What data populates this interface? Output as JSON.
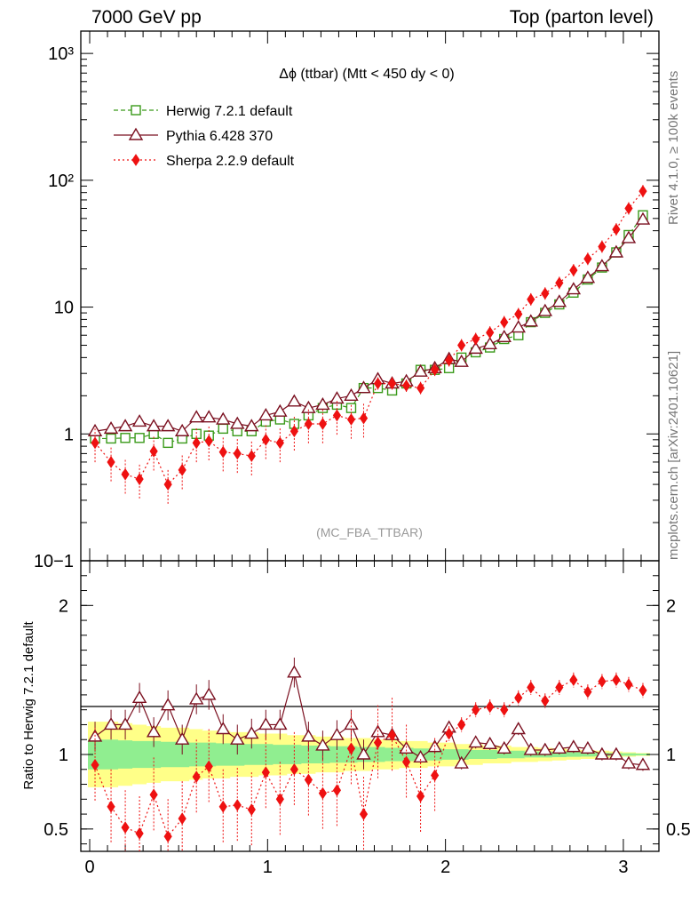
{
  "header": {
    "left": "7000 GeV pp",
    "right": "Top (parton level)"
  },
  "side_labels": {
    "rivet": "Rivet 4.1.0, ≥ 100k events",
    "mcplots": "mcplots.cern.ch [arXiv:2401.10621]"
  },
  "colors": {
    "herwig": "#3a9a1a",
    "pythia": "#7b1020",
    "sherpa": "#ee1111",
    "band_green": "#90ee90",
    "band_yellow": "#ffff88"
  },
  "chart_data": [
    {
      "type": "line",
      "title": "Δϕ (ttbar) (Mtt < 450 dy < 0)",
      "watermark": "(MC_FBA_TTBAR)",
      "yscale": "log",
      "ylim": [
        0.1,
        1500
      ],
      "xlim": [
        -0.05,
        3.2
      ],
      "ytick_labels": [
        "10−1",
        "1",
        "10",
        "10²",
        "10³"
      ],
      "legend_position": "top-left",
      "x": [
        0.03,
        0.12,
        0.2,
        0.28,
        0.36,
        0.44,
        0.52,
        0.6,
        0.67,
        0.75,
        0.83,
        0.91,
        0.99,
        1.07,
        1.15,
        1.23,
        1.31,
        1.39,
        1.47,
        1.54,
        1.62,
        1.7,
        1.78,
        1.86,
        1.94,
        2.02,
        2.09,
        2.17,
        2.25,
        2.33,
        2.41,
        2.48,
        2.56,
        2.64,
        2.72,
        2.8,
        2.88,
        2.96,
        3.03,
        3.11
      ],
      "series": [
        {
          "name": "Herwig 7.2.1 default",
          "style": "dashed-open-square",
          "values": [
            0.92,
            0.92,
            0.93,
            0.93,
            1.0,
            0.85,
            0.92,
            1.0,
            0.97,
            1.1,
            1.05,
            1.05,
            1.25,
            1.3,
            1.2,
            1.4,
            1.6,
            1.7,
            1.6,
            2.3,
            2.3,
            2.2,
            2.5,
            3.2,
            3.2,
            3.3,
            4.0,
            4.4,
            4.8,
            5.6,
            6.0,
            7.6,
            9.0,
            10.5,
            13.0,
            16.5,
            20.5,
            27.0,
            37.0,
            53.0
          ]
        },
        {
          "name": "Pythia 6.428 370",
          "style": "solid-open-triangle",
          "values": [
            1.05,
            1.1,
            1.15,
            1.25,
            1.15,
            1.15,
            1.05,
            1.35,
            1.35,
            1.3,
            1.2,
            1.15,
            1.4,
            1.5,
            1.8,
            1.6,
            1.7,
            1.9,
            2.0,
            2.3,
            2.7,
            2.5,
            2.6,
            3.1,
            3.3,
            3.9,
            3.7,
            4.7,
            5.1,
            5.8,
            6.9,
            7.7,
            9.3,
            11.0,
            13.8,
            17.0,
            21.0,
            27.0,
            35.0,
            49.0
          ]
        },
        {
          "name": "Sherpa 2.2.9 default",
          "style": "dotted-filled-diamond",
          "values": [
            0.85,
            0.6,
            0.48,
            0.44,
            0.73,
            0.4,
            0.52,
            0.85,
            0.88,
            0.72,
            0.7,
            0.67,
            0.9,
            0.85,
            1.05,
            1.2,
            1.2,
            1.4,
            1.3,
            1.33,
            2.5,
            2.5,
            2.4,
            2.3,
            3.2,
            3.8,
            5.0,
            5.6,
            6.3,
            7.6,
            8.8,
            11.5,
            12.8,
            15.5,
            19.5,
            24.0,
            30.0,
            41.0,
            60.0,
            82.0
          ]
        }
      ]
    },
    {
      "type": "line",
      "ylabel": "Ratio to Herwig 7.2.1 default",
      "ylim": [
        0.35,
        2.3
      ],
      "xlim": [
        -0.05,
        3.2
      ],
      "xtick_labels": [
        "0",
        "1",
        "2",
        "3"
      ],
      "ytick_labels": [
        "0.5",
        "1",
        "2"
      ],
      "x": [
        0.03,
        0.12,
        0.2,
        0.28,
        0.36,
        0.44,
        0.52,
        0.6,
        0.67,
        0.75,
        0.83,
        0.91,
        0.99,
        1.07,
        1.15,
        1.23,
        1.31,
        1.39,
        1.47,
        1.54,
        1.62,
        1.7,
        1.78,
        1.86,
        1.94,
        2.02,
        2.09,
        2.17,
        2.25,
        2.33,
        2.41,
        2.48,
        2.56,
        2.64,
        2.72,
        2.8,
        2.88,
        2.96,
        3.03,
        3.11
      ],
      "band_yellow": [
        0.22,
        0.22,
        0.21,
        0.2,
        0.19,
        0.18,
        0.18,
        0.17,
        0.16,
        0.16,
        0.15,
        0.15,
        0.14,
        0.14,
        0.13,
        0.13,
        0.12,
        0.12,
        0.11,
        0.11,
        0.1,
        0.1,
        0.09,
        0.09,
        0.08,
        0.08,
        0.07,
        0.07,
        0.06,
        0.06,
        0.05,
        0.05,
        0.045,
        0.04,
        0.035,
        0.03,
        0.025,
        0.02,
        0.015,
        0.01
      ],
      "band_green": [
        0.1,
        0.1,
        0.095,
        0.09,
        0.09,
        0.085,
        0.085,
        0.08,
        0.08,
        0.075,
        0.075,
        0.07,
        0.07,
        0.065,
        0.065,
        0.06,
        0.06,
        0.055,
        0.055,
        0.05,
        0.05,
        0.045,
        0.045,
        0.04,
        0.04,
        0.035,
        0.035,
        0.03,
        0.03,
        0.025,
        0.025,
        0.02,
        0.02,
        0.018,
        0.016,
        0.014,
        0.012,
        0.01,
        0.008,
        0.006
      ],
      "series": [
        {
          "name": "Pythia 6.428 370",
          "values": [
            1.12,
            1.2,
            1.2,
            1.38,
            1.15,
            1.33,
            1.1,
            1.37,
            1.4,
            1.17,
            1.1,
            1.14,
            1.2,
            1.2,
            1.55,
            1.12,
            1.06,
            1.13,
            1.2,
            1.0,
            1.15,
            1.13,
            1.04,
            0.98,
            1.05,
            1.18,
            0.94,
            1.08,
            1.07,
            1.04,
            1.17,
            1.03,
            1.03,
            1.04,
            1.05,
            1.04,
            1.0,
            1.0,
            0.94,
            0.93
          ]
        },
        {
          "name": "Sherpa 2.2.9 default",
          "values": [
            0.93,
            0.65,
            0.51,
            0.47,
            0.73,
            0.45,
            0.57,
            0.85,
            0.92,
            0.65,
            0.66,
            0.63,
            0.88,
            0.7,
            0.9,
            0.83,
            0.74,
            0.76,
            1.04,
            0.6,
            1.08,
            1.13,
            0.95,
            0.72,
            0.86,
            1.14,
            1.2,
            1.3,
            1.32,
            1.3,
            1.38,
            1.45,
            1.36,
            1.45,
            1.5,
            1.42,
            1.49,
            1.5,
            1.47,
            1.43
          ]
        }
      ]
    }
  ]
}
